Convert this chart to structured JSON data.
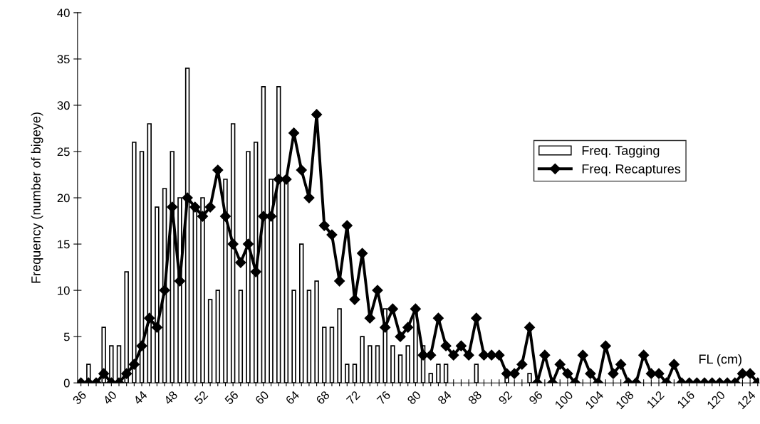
{
  "chart_data": {
    "type": "bar",
    "xlabel": "FL (cm)",
    "ylabel": "Frequency (number of bigeye)",
    "categories": [
      "36",
      null,
      null,
      null,
      "40",
      null,
      null,
      null,
      "44",
      null,
      null,
      null,
      "48",
      null,
      null,
      null,
      "52",
      null,
      null,
      null,
      "56",
      null,
      null,
      null,
      "60",
      null,
      null,
      null,
      "64",
      null,
      null,
      null,
      "68",
      null,
      null,
      null,
      "72",
      null,
      null,
      null,
      "76",
      null,
      null,
      null,
      "80",
      null,
      null,
      null,
      "84",
      null,
      null,
      null,
      "88",
      null,
      null,
      null,
      "92",
      null,
      null,
      null,
      "96",
      null,
      null,
      null,
      "100",
      null,
      null,
      null,
      "104",
      null,
      null,
      null,
      "108",
      null,
      null,
      null,
      "112",
      null,
      null,
      null,
      "116",
      null,
      null,
      null,
      "120",
      null,
      null,
      null,
      "124",
      null
    ],
    "series": [
      {
        "name": "Freq. Tagging",
        "color": "#ffffff",
        "values": [
          0,
          2,
          0,
          6,
          4,
          4,
          12,
          26,
          25,
          28,
          19,
          21,
          25,
          20,
          34,
          19,
          20,
          9,
          10,
          22,
          28,
          10,
          25,
          26,
          32,
          22,
          32,
          22,
          10,
          15,
          10,
          11,
          6,
          6,
          8,
          2,
          2,
          5,
          4,
          4,
          8,
          4,
          3,
          4,
          8,
          4,
          1,
          2,
          2,
          0,
          0,
          0,
          2,
          0,
          0,
          0,
          1,
          0,
          0,
          1,
          0,
          0,
          0,
          0,
          0,
          0,
          0,
          0,
          0,
          0,
          0,
          0,
          0,
          0,
          0,
          0,
          0,
          0,
          0,
          0,
          0,
          0,
          0,
          0,
          0,
          0,
          0,
          0,
          0,
          0
        ]
      },
      {
        "name": "Freq. Recaptures",
        "type": "line",
        "color": "#000000",
        "marker": "diamond",
        "values": [
          0,
          0,
          0,
          1,
          0,
          0,
          1,
          2,
          4,
          7,
          6,
          10,
          19,
          11,
          20,
          19,
          18,
          19,
          23,
          18,
          15,
          13,
          15,
          12,
          18,
          18,
          22,
          22,
          27,
          23,
          20,
          29,
          17,
          16,
          11,
          17,
          9,
          14,
          7,
          10,
          6,
          8,
          5,
          6,
          8,
          3,
          3,
          7,
          4,
          3,
          4,
          3,
          7,
          3,
          3,
          3,
          1,
          1,
          2,
          6,
          0,
          3,
          0,
          2,
          1,
          0,
          3,
          1,
          0,
          4,
          1,
          2,
          0,
          0,
          3,
          1,
          1,
          0,
          2,
          0,
          0,
          0,
          0,
          0,
          0,
          0,
          0,
          1,
          1,
          0
        ]
      }
    ],
    "ylim": [
      0,
      40
    ],
    "yticks": [
      0,
      5,
      10,
      15,
      20,
      25,
      30,
      35,
      40
    ],
    "grid": false,
    "legend": "right"
  }
}
